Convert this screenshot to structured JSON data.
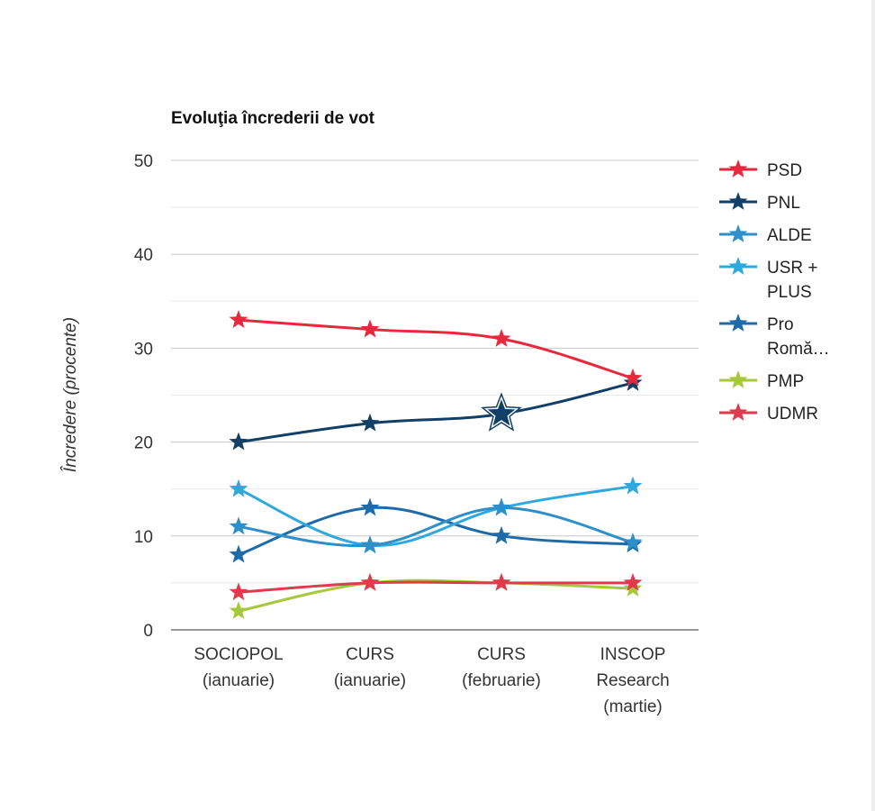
{
  "chart_data": {
    "type": "line",
    "title": "Evoluţia încrederii de vot",
    "xlabel": "",
    "ylabel": "Încredere (procente)",
    "ylim": [
      0,
      50
    ],
    "yticks": [
      0,
      10,
      20,
      30,
      40,
      50
    ],
    "categories": [
      [
        "SOCIOPOL",
        "(ianuarie)"
      ],
      [
        "CURS",
        "(ianuarie)"
      ],
      [
        "CURS",
        "(februarie)"
      ],
      [
        "INSCOP",
        "Research",
        "(martie)"
      ]
    ],
    "legend_position": "right",
    "series": [
      {
        "name": "PSD",
        "legend_label": [
          "PSD"
        ],
        "color": "#e8283c",
        "values": [
          33,
          32,
          31,
          26.8
        ]
      },
      {
        "name": "PNL",
        "legend_label": [
          "PNL"
        ],
        "color": "#123f66",
        "values": [
          20,
          22,
          23,
          26.3
        ]
      },
      {
        "name": "ALDE",
        "legend_label": [
          "ALDE"
        ],
        "color": "#2f8fc8",
        "values": [
          11,
          9,
          13,
          9.3
        ]
      },
      {
        "name": "USR + PLUS",
        "legend_label": [
          "USR +",
          "PLUS"
        ],
        "color": "#2fa8de",
        "values": [
          15,
          9,
          13,
          15.3
        ]
      },
      {
        "name": "Pro România",
        "legend_label": [
          "Pro",
          "Romă…"
        ],
        "color": "#1f6aa8",
        "values": [
          8,
          13,
          10,
          9.1
        ]
      },
      {
        "name": "PMP",
        "legend_label": [
          "PMP"
        ],
        "color": "#a8c83c",
        "values": [
          2,
          5,
          5,
          4.4
        ]
      },
      {
        "name": "UDMR",
        "legend_label": [
          "UDMR"
        ],
        "color": "#e03a4c",
        "values": [
          4,
          5,
          5,
          5
        ]
      }
    ]
  }
}
